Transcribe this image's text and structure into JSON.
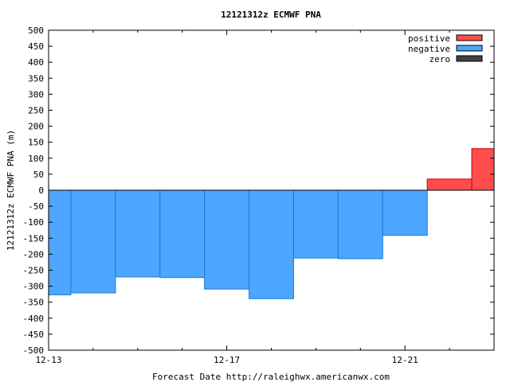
{
  "chart_data": {
    "type": "bar",
    "title": "12121312z ECMWF PNA",
    "xlabel": "Forecast Date http://raleighwx.americanwx.com",
    "ylabel": "12121312z ECMWF PNA (m)",
    "ylim": [
      -500,
      500
    ],
    "xlim": [
      "12-13",
      "12-23"
    ],
    "y_ticks": [
      "500",
      "450",
      "400",
      "350",
      "300",
      "250",
      "200",
      "150",
      "100",
      "50",
      "0",
      "-50",
      "-100",
      "-150",
      "-200",
      "-250",
      "-300",
      "-350",
      "-400",
      "-450",
      "-500"
    ],
    "x_tick_labels": [
      "12-13",
      "12-17",
      "12-21"
    ],
    "grid": false,
    "legend": {
      "placement": "top-right",
      "entries": [
        {
          "label": "positive",
          "color": "#ff4d4d"
        },
        {
          "label": "negative",
          "color": "#4da6ff"
        },
        {
          "label": "zero",
          "color": "#404040"
        }
      ]
    },
    "bars": [
      {
        "start": "12-13",
        "end": "12-13 12z",
        "value": -327
      },
      {
        "start": "12-13 12z",
        "end": "12-14 12z",
        "value": -321
      },
      {
        "start": "12-14 12z",
        "end": "12-15 12z",
        "value": -271
      },
      {
        "start": "12-15 12z",
        "end": "12-16 12z",
        "value": -273
      },
      {
        "start": "12-16 12z",
        "end": "12-17 12z",
        "value": -309
      },
      {
        "start": "12-17 12z",
        "end": "12-18 12z",
        "value": -339
      },
      {
        "start": "12-18 12z",
        "end": "12-19 12z",
        "value": -212
      },
      {
        "start": "12-19 12z",
        "end": "12-20 12z",
        "value": -214
      },
      {
        "start": "12-20 12z",
        "end": "12-21 12z",
        "value": -141
      },
      {
        "start": "12-21 12z",
        "end": "12-22 12z",
        "value": 35
      },
      {
        "start": "12-22 12z",
        "end": "12-23",
        "value": 130
      }
    ],
    "colors": {
      "positive": "#ff4d4d",
      "negative": "#4da6ff",
      "zero": "#404040",
      "positive_edge": "#cc0000",
      "negative_edge": "#1f78d1"
    }
  }
}
